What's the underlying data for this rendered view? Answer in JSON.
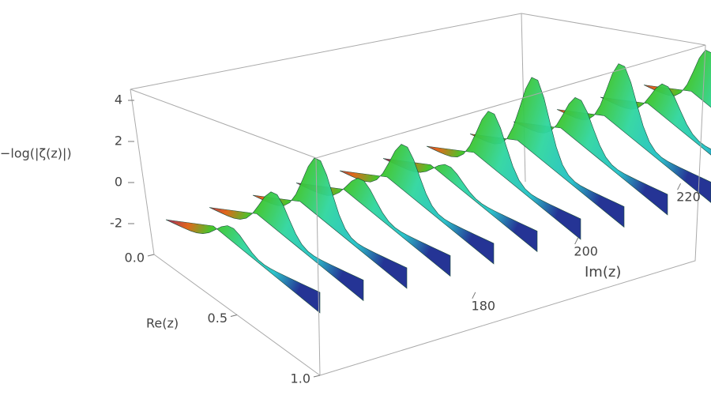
{
  "chart_data": {
    "type": "surface3d",
    "zlabel": "−log(|ζ(z)|)",
    "xlabel": "Re(z)",
    "ylabel": "Im(z)",
    "xlim": [
      0,
      1
    ],
    "xticks": [
      {
        "value": 0,
        "label": "0.0"
      },
      {
        "value": 0.5,
        "label": "0.5"
      },
      {
        "value": 1,
        "label": "1.0"
      }
    ],
    "ylim": [
      150,
      225
    ],
    "yticks": [
      180,
      200,
      220
    ],
    "zlim": [
      -3,
      4.5
    ],
    "zticks": [
      -2,
      0,
      2,
      4
    ]
  }
}
